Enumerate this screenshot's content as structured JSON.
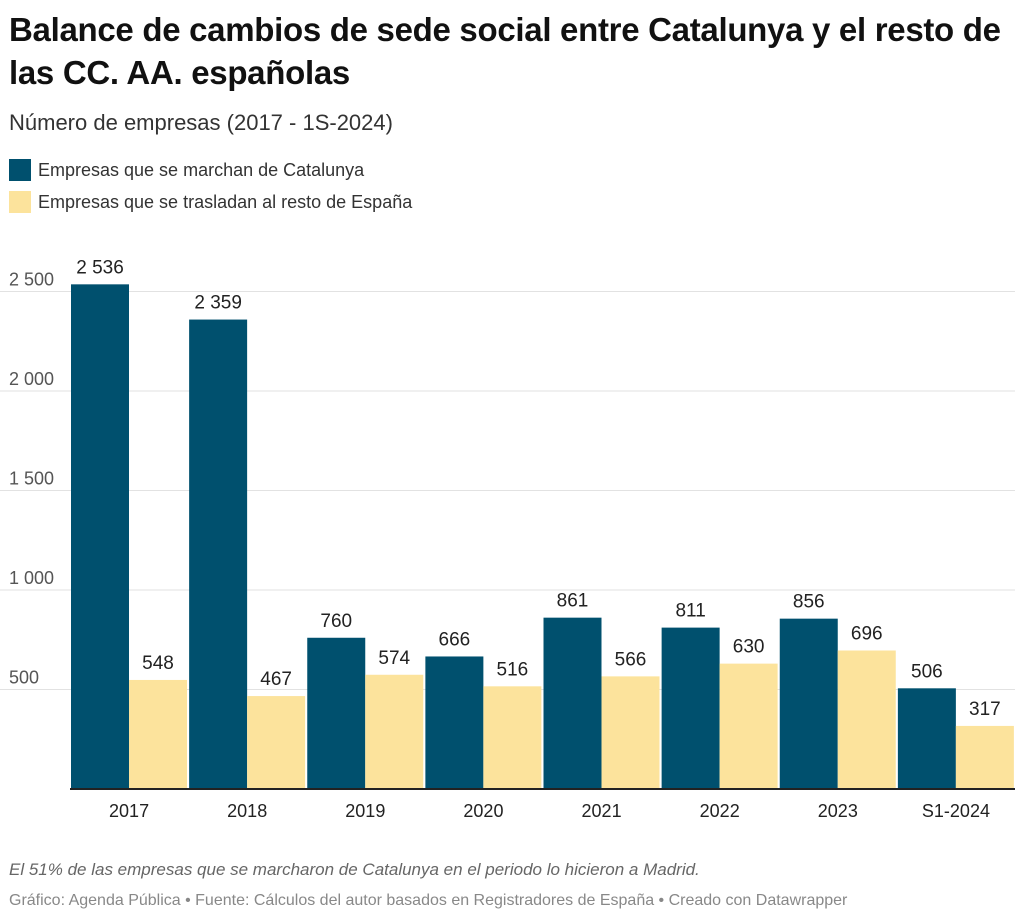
{
  "title": "Balance de cambios de sede social entre Catalunya y el resto de las CC. AA. españolas",
  "subtitle": "Número de empresas (2017 - 1S-2024)",
  "notes": "El 51% de las empresas que se marcharon de Catalunya en el periodo lo hicieron a Madrid.",
  "credit": "Gráfico: Agenda Pública • Fuente: Cálculos del autor basados en Registradores de España • Creado con Datawrapper",
  "chart_data": {
    "type": "bar",
    "title": "Balance de cambios de sede social entre Catalunya y el resto de las CC. AA. españolas",
    "subtitle": "Número de empresas (2017 - 1S-2024)",
    "xlabel": "",
    "ylabel": "",
    "categories": [
      "2017",
      "2018",
      "2019",
      "2020",
      "2021",
      "2022",
      "2023",
      "S1-2024"
    ],
    "series": [
      {
        "name": "Empresas que se marchan de Catalunya",
        "color": "#00506e",
        "values": [
          2536,
          2359,
          760,
          666,
          861,
          811,
          856,
          506
        ],
        "labels": [
          "2 536",
          "2 359",
          "760",
          "666",
          "861",
          "811",
          "856",
          "506"
        ]
      },
      {
        "name": "Empresas que se trasladan al resto de España",
        "color": "#fce39c",
        "values": [
          548,
          467,
          574,
          516,
          566,
          630,
          696,
          317
        ],
        "labels": [
          "548",
          "467",
          "574",
          "516",
          "566",
          "630",
          "696",
          "317"
        ]
      }
    ],
    "ylim": [
      0,
      2500
    ],
    "yticks": [
      500,
      1000,
      1500,
      2000,
      2500
    ],
    "ytick_labels": [
      "500",
      "1 000",
      "1 500",
      "2 000",
      "2 500"
    ],
    "grid": true,
    "legend": "top-left"
  }
}
